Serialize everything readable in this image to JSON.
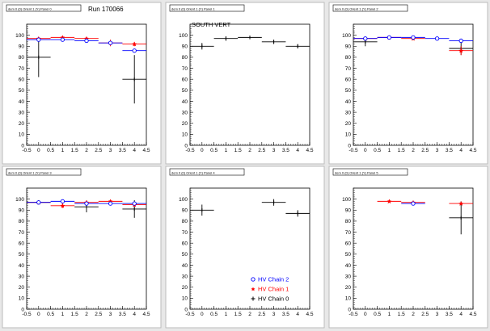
{
  "run_label": "Run 170066",
  "legend": [
    {
      "label": "HV Chain 2",
      "color": "#0000ff",
      "marker": "circle"
    },
    {
      "label": "HV Chain 1",
      "color": "#ff0000",
      "marker": "star"
    },
    {
      "label": "HV Chain 0",
      "color": "#000000",
      "marker": "cross"
    }
  ],
  "colors": {
    "canvas_bg": "#e8e8e8",
    "pad_bg": "#ffffff",
    "chain2": "#0000ff",
    "chain1": "#ff0000",
    "chain0": "#000000"
  },
  "axes": {
    "xlim": [
      -0.5,
      4.5
    ],
    "ylim": [
      0,
      110
    ],
    "x_ticks": [
      "-0.5",
      "0",
      "0.5",
      "1",
      "1.5",
      "2",
      "2.5",
      "3",
      "3.5",
      "4",
      "4.5"
    ],
    "y_ticks": [
      "0",
      "10",
      "20",
      "30",
      "40",
      "50",
      "60",
      "70",
      "80",
      "90",
      "100"
    ]
  },
  "chart_data": [
    {
      "type": "scatter",
      "title": "dem 0 (0) Orient 1 (Y) Panel 0",
      "annotation": "Run 170066",
      "xlim": [
        -0.5,
        4.5
      ],
      "ylim": [
        0,
        110
      ],
      "series": [
        {
          "name": "HV Chain 2",
          "points": [
            {
              "x": 0,
              "y": 96,
              "yerr": 1
            },
            {
              "x": 1,
              "y": 96,
              "yerr": 1
            },
            {
              "x": 2,
              "y": 95,
              "yerr": 1
            },
            {
              "x": 3,
              "y": 93,
              "yerr": 1
            },
            {
              "x": 4,
              "y": 86,
              "yerr": 1
            }
          ]
        },
        {
          "name": "HV Chain 1",
          "points": [
            {
              "x": 0,
              "y": 97,
              "yerr": 1
            },
            {
              "x": 1,
              "y": 98,
              "yerr": 1
            },
            {
              "x": 2,
              "y": 97,
              "yerr": 1
            },
            {
              "x": 3,
              "y": 93,
              "yerr": 3
            },
            {
              "x": 4,
              "y": 92,
              "yerr": 2
            }
          ]
        },
        {
          "name": "HV Chain 0",
          "points": [
            {
              "x": 0,
              "y": 80,
              "yerr": 18
            },
            {
              "x": 4,
              "y": 60,
              "yerr": 22
            }
          ]
        }
      ]
    },
    {
      "type": "scatter",
      "title": "dem 0 (0) Orient 1 (Y) Panel 1",
      "annotation": "SOUTH VERT",
      "xlim": [
        -0.5,
        4.5
      ],
      "ylim": [
        0,
        110
      ],
      "series": [
        {
          "name": "HV Chain 0",
          "points": [
            {
              "x": 0,
              "y": 90,
              "yerr": 3
            },
            {
              "x": 1,
              "y": 97,
              "yerr": 2
            },
            {
              "x": 2,
              "y": 98,
              "yerr": 1
            },
            {
              "x": 3,
              "y": 94,
              "yerr": 2
            },
            {
              "x": 4,
              "y": 90,
              "yerr": 2
            }
          ]
        }
      ]
    },
    {
      "type": "scatter",
      "title": "dem 0 (0) Orient 1 (Y) Panel 2",
      "annotation": "",
      "xlim": [
        -0.5,
        4.5
      ],
      "ylim": [
        0,
        110
      ],
      "series": [
        {
          "name": "HV Chain 2",
          "points": [
            {
              "x": 0,
              "y": 97,
              "yerr": 1
            },
            {
              "x": 1,
              "y": 98,
              "yerr": 1
            },
            {
              "x": 2,
              "y": 98,
              "yerr": 1
            },
            {
              "x": 3,
              "y": 97,
              "yerr": 1
            },
            {
              "x": 4,
              "y": 95,
              "yerr": 1
            }
          ]
        },
        {
          "name": "HV Chain 1",
          "points": [
            {
              "x": 0,
              "y": 97,
              "yerr": 1
            },
            {
              "x": 1,
              "y": 98,
              "yerr": 1
            },
            {
              "x": 2,
              "y": 97,
              "yerr": 1
            },
            {
              "x": 4,
              "y": 86,
              "yerr": 4
            }
          ]
        },
        {
          "name": "HV Chain 0",
          "points": [
            {
              "x": 0,
              "y": 94,
              "yerr": 4
            },
            {
              "x": 4,
              "y": 88,
              "yerr": 6
            }
          ]
        }
      ]
    },
    {
      "type": "scatter",
      "title": "dem 0 (0) Orient 1 (Y) Panel 3",
      "annotation": "",
      "xlim": [
        -0.5,
        4.5
      ],
      "ylim": [
        0,
        110
      ],
      "series": [
        {
          "name": "HV Chain 2",
          "points": [
            {
              "x": 0,
              "y": 97,
              "yerr": 1
            },
            {
              "x": 1,
              "y": 98,
              "yerr": 1
            },
            {
              "x": 2,
              "y": 96,
              "yerr": 1
            },
            {
              "x": 3,
              "y": 96,
              "yerr": 1
            },
            {
              "x": 4,
              "y": 96,
              "yerr": 1
            }
          ]
        },
        {
          "name": "HV Chain 1",
          "points": [
            {
              "x": 0,
              "y": 97,
              "yerr": 1
            },
            {
              "x": 1,
              "y": 94,
              "yerr": 2
            },
            {
              "x": 2,
              "y": 97,
              "yerr": 2
            },
            {
              "x": 3,
              "y": 98,
              "yerr": 1
            },
            {
              "x": 4,
              "y": 95,
              "yerr": 2
            }
          ]
        },
        {
          "name": "HV Chain 0",
          "points": [
            {
              "x": 0,
              "y": 97,
              "yerr": 2
            },
            {
              "x": 2,
              "y": 93,
              "yerr": 5
            },
            {
              "x": 4,
              "y": 91,
              "yerr": 8
            }
          ]
        }
      ]
    },
    {
      "type": "scatter",
      "title": "dem 0 (0) Orient 1 (Y) Panel 4",
      "annotation": "",
      "xlim": [
        -0.5,
        4.5
      ],
      "ylim": [
        0,
        110
      ],
      "series": [
        {
          "name": "HV Chain 0",
          "points": [
            {
              "x": 0,
              "y": 90,
              "yerr": 5
            },
            {
              "x": 3,
              "y": 97,
              "yerr": 3
            },
            {
              "x": 4,
              "y": 87,
              "yerr": 3
            }
          ]
        }
      ]
    },
    {
      "type": "scatter",
      "title": "dem 0 (0) Orient 1 (Y) Panel 5",
      "annotation": "",
      "xlim": [
        -0.5,
        4.5
      ],
      "ylim": [
        0,
        110
      ],
      "series": [
        {
          "name": "HV Chain 2",
          "points": [
            {
              "x": 2,
              "y": 96,
              "yerr": 1
            }
          ]
        },
        {
          "name": "HV Chain 1",
          "points": [
            {
              "x": 1,
              "y": 98,
              "yerr": 1
            },
            {
              "x": 2,
              "y": 97,
              "yerr": 1
            },
            {
              "x": 4,
              "y": 96,
              "yerr": 1
            }
          ]
        },
        {
          "name": "HV Chain 0",
          "points": [
            {
              "x": 4,
              "y": 83,
              "yerr": 15
            }
          ]
        }
      ]
    }
  ]
}
